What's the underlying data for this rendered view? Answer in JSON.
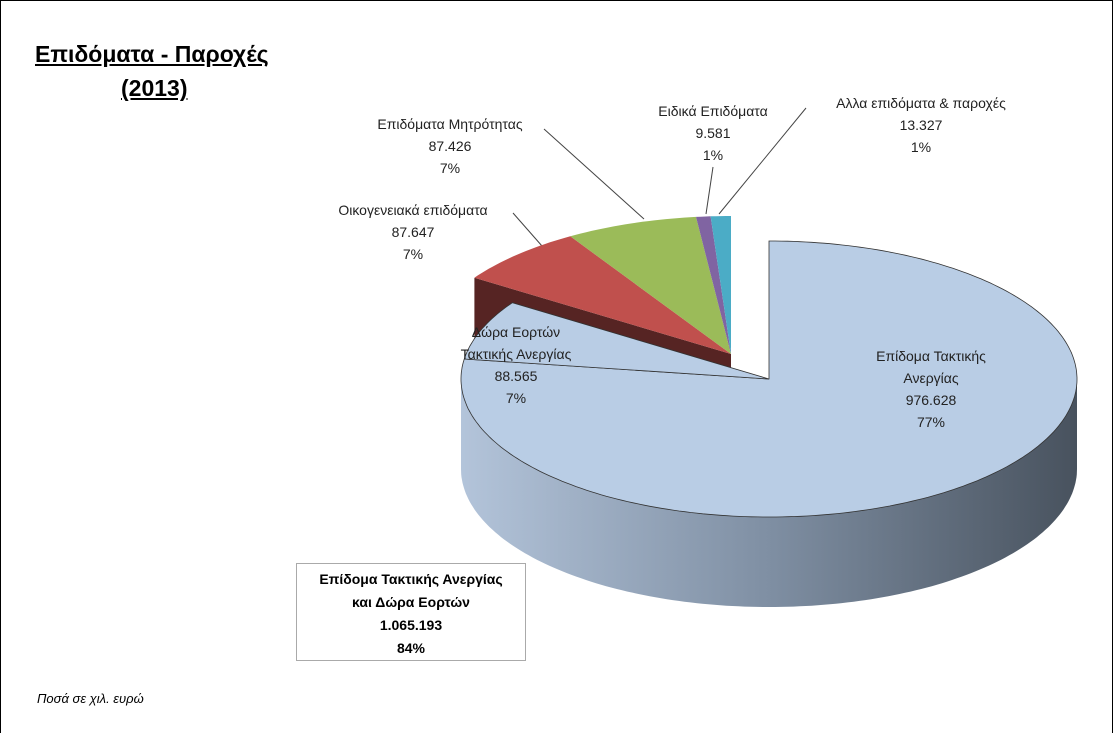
{
  "chart_data": {
    "type": "pie3d",
    "title": "Επιδόματα - Παροχές",
    "subtitle": "(2013)",
    "categories": [
      "Επίδομα Τακτικής Ανεργίας",
      "Δώρα Εορτών Τακτικής Ανεργίας",
      "Οικογενειακά επιδόματα",
      "Επιδόματα Μητρότητας",
      "Ειδικά Επιδόματα",
      "Αλλα επιδόματα & παροχές"
    ],
    "values": [
      976628,
      88565,
      87647,
      87426,
      9581,
      13327
    ],
    "value_labels": [
      "976.628",
      "88.565",
      "87.647",
      "87.426",
      "9.581",
      "13.327"
    ],
    "percents": [
      77,
      7,
      7,
      7,
      1,
      1
    ],
    "percent_labels": [
      "77%",
      "7%",
      "7%",
      "7%",
      "1%",
      "1%"
    ],
    "colors": [
      "#b9cde5",
      "#b9cde5",
      "#c0504d",
      "#9bbb59",
      "#8064a2",
      "#4bacc6"
    ],
    "annotation": {
      "text": "Επίδομα Τακτικής Ανεργίας και Δώρα Εορτών",
      "value": 1065193,
      "value_label": "1.065.193",
      "percent": 84,
      "percent_label": "84%"
    },
    "note": "Ποσά σε χιλ. ευρώ"
  }
}
